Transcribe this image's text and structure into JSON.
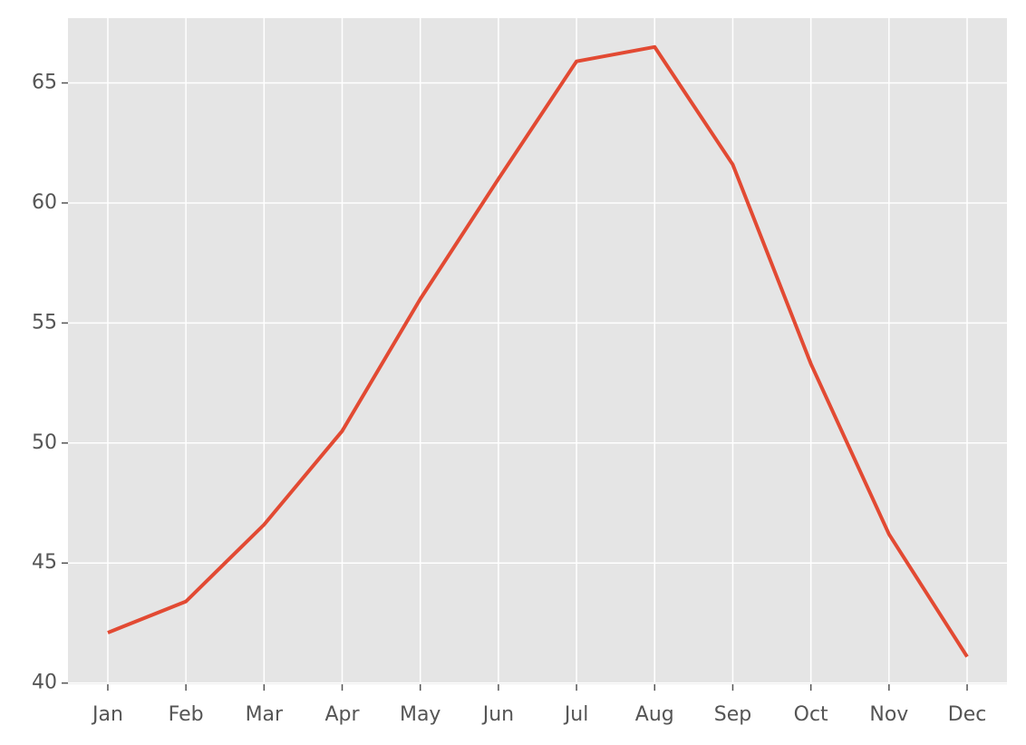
{
  "chart_data": {
    "type": "line",
    "categories": [
      "Jan",
      "Feb",
      "Mar",
      "Apr",
      "May",
      "Jun",
      "Jul",
      "Aug",
      "Sep",
      "Oct",
      "Nov",
      "Dec"
    ],
    "series": [
      {
        "color": "#e24a33",
        "values": [
          42.1,
          43.4,
          46.6,
          50.5,
          56.0,
          61.0,
          65.9,
          66.5,
          61.6,
          53.3,
          46.2,
          41.1
        ]
      }
    ],
    "ylim": [
      39.95,
      67.7
    ],
    "yticks": [
      40,
      45,
      50,
      55,
      60,
      65
    ],
    "grid": true
  }
}
